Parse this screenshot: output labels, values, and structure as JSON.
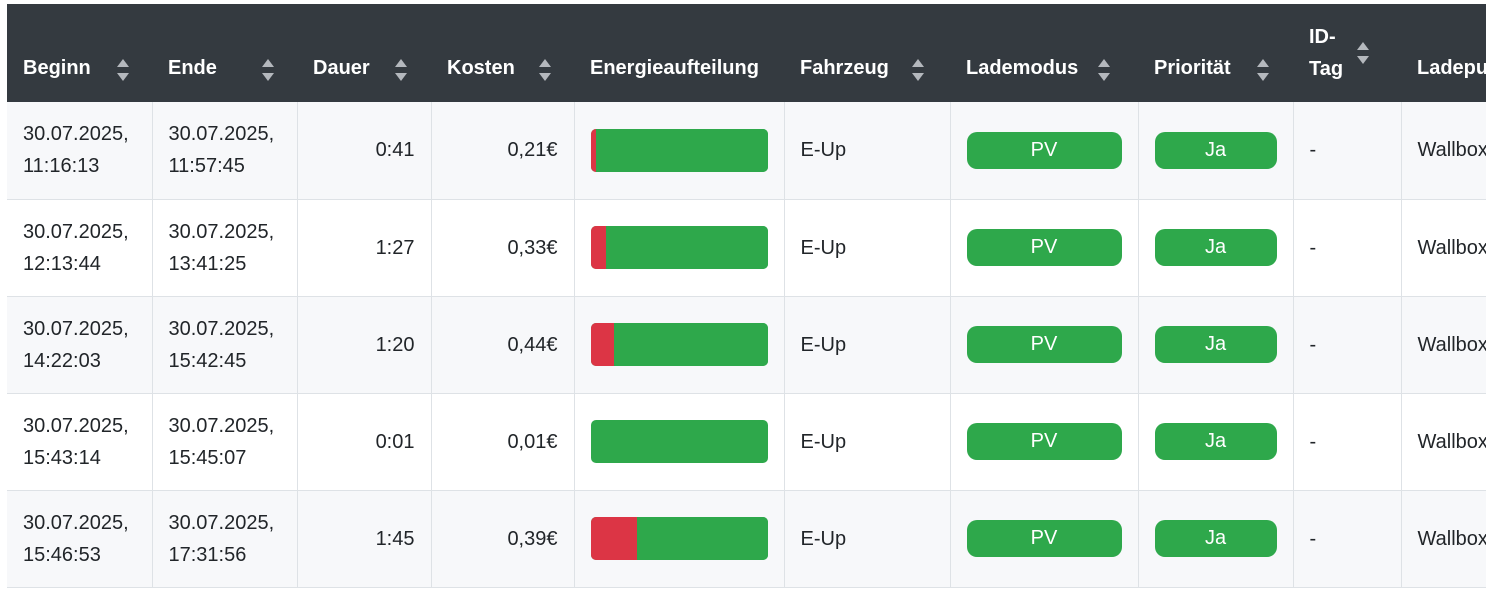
{
  "colors": {
    "header_bg": "#343a40",
    "pv_green": "#2ea84b",
    "grid_red": "#dc3545",
    "badge_green": "#2ea84b"
  },
  "headers": {
    "beginn": "Beginn",
    "ende": "Ende",
    "dauer": "Dauer",
    "kosten": "Kosten",
    "energie": "Energieaufteilung",
    "fahrzeug": "Fahrzeug",
    "lademodus": "Lademodus",
    "prioritaet": "Priorität",
    "idtag_line1": "ID-",
    "idtag_line2": "Tag",
    "ladepunkt": "Ladepunkt"
  },
  "rows": [
    {
      "beginn_date": "30.07.2025,",
      "beginn_time": "11:16:13",
      "ende_date": "30.07.2025,",
      "ende_time": "11:57:45",
      "dauer": "0:41",
      "kosten": "0,21€",
      "grid_fraction": 0.03,
      "fahrzeug": "E-Up",
      "lademodus": "PV",
      "prioritaet": "Ja",
      "idtag": "-",
      "ladepunkt": "Wallbox"
    },
    {
      "beginn_date": "30.07.2025,",
      "beginn_time": "12:13:44",
      "ende_date": "30.07.2025,",
      "ende_time": "13:41:25",
      "dauer": "1:27",
      "kosten": "0,33€",
      "grid_fraction": 0.09,
      "fahrzeug": "E-Up",
      "lademodus": "PV",
      "prioritaet": "Ja",
      "idtag": "-",
      "ladepunkt": "Wallbox"
    },
    {
      "beginn_date": "30.07.2025,",
      "beginn_time": "14:22:03",
      "ende_date": "30.07.2025,",
      "ende_time": "15:42:45",
      "dauer": "1:20",
      "kosten": "0,44€",
      "grid_fraction": 0.13,
      "fahrzeug": "E-Up",
      "lademodus": "PV",
      "prioritaet": "Ja",
      "idtag": "-",
      "ladepunkt": "Wallbox"
    },
    {
      "beginn_date": "30.07.2025,",
      "beginn_time": "15:43:14",
      "ende_date": "30.07.2025,",
      "ende_time": "15:45:07",
      "dauer": "0:01",
      "kosten": "0,01€",
      "grid_fraction": 0.0,
      "fahrzeug": "E-Up",
      "lademodus": "PV",
      "prioritaet": "Ja",
      "idtag": "-",
      "ladepunkt": "Wallbox"
    },
    {
      "beginn_date": "30.07.2025,",
      "beginn_time": "15:46:53",
      "ende_date": "30.07.2025,",
      "ende_time": "17:31:56",
      "dauer": "1:45",
      "kosten": "0,39€",
      "grid_fraction": 0.26,
      "fahrzeug": "E-Up",
      "lademodus": "PV",
      "prioritaet": "Ja",
      "idtag": "-",
      "ladepunkt": "Wallbox"
    }
  ]
}
